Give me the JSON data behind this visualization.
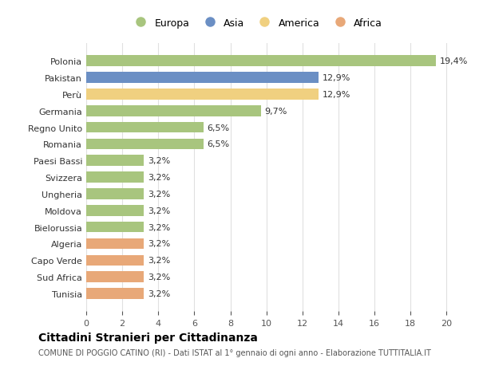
{
  "categories": [
    "Tunisia",
    "Sud Africa",
    "Capo Verde",
    "Algeria",
    "Bielorussia",
    "Moldova",
    "Ungheria",
    "Svizzera",
    "Paesi Bassi",
    "Romania",
    "Regno Unito",
    "Germania",
    "Perù",
    "Pakistan",
    "Polonia"
  ],
  "values": [
    3.2,
    3.2,
    3.2,
    3.2,
    3.2,
    3.2,
    3.2,
    3.2,
    3.2,
    6.5,
    6.5,
    9.7,
    12.9,
    12.9,
    19.4
  ],
  "continents": [
    "Africa",
    "Africa",
    "Africa",
    "Africa",
    "Europa",
    "Europa",
    "Europa",
    "Europa",
    "Europa",
    "Europa",
    "Europa",
    "Europa",
    "America",
    "Asia",
    "Europa"
  ],
  "labels": [
    "3,2%",
    "3,2%",
    "3,2%",
    "3,2%",
    "3,2%",
    "3,2%",
    "3,2%",
    "3,2%",
    "3,2%",
    "6,5%",
    "6,5%",
    "9,7%",
    "12,9%",
    "12,9%",
    "19,4%"
  ],
  "colors": {
    "Europa": "#a8c57e",
    "Asia": "#6b8fc4",
    "America": "#f0d080",
    "Africa": "#e8a878"
  },
  "legend_order": [
    "Europa",
    "Asia",
    "America",
    "Africa"
  ],
  "xlim": [
    0,
    21
  ],
  "xticks": [
    0,
    2,
    4,
    6,
    8,
    10,
    12,
    14,
    16,
    18,
    20
  ],
  "title": "Cittadini Stranieri per Cittadinanza",
  "subtitle": "COMUNE DI POGGIO CATINO (RI) - Dati ISTAT al 1° gennaio di ogni anno - Elaborazione TUTTITALIA.IT",
  "background_color": "#ffffff",
  "grid_color": "#e0e0e0"
}
